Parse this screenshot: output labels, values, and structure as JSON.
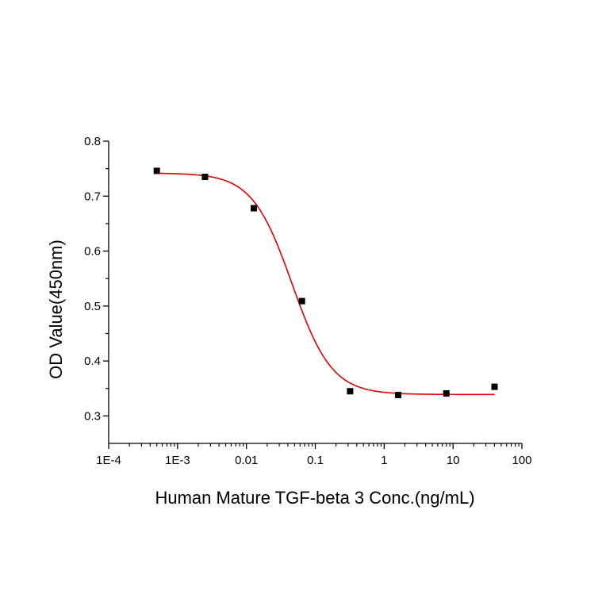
{
  "chart_data": {
    "type": "scatter",
    "title": "",
    "xlabel": "Human Mature TGF-beta 3 Conc.(ng/mL)",
    "ylabel": "OD Value(450nm)",
    "x_scale": "log",
    "xlim": [
      0.0001,
      100
    ],
    "ylim": [
      0.25,
      0.8
    ],
    "x_ticks": [
      {
        "value": 0.0001,
        "label": "1E-4"
      },
      {
        "value": 0.001,
        "label": "1E-3"
      },
      {
        "value": 0.01,
        "label": "0.01"
      },
      {
        "value": 0.1,
        "label": "0.1"
      },
      {
        "value": 1,
        "label": "1"
      },
      {
        "value": 10,
        "label": "10"
      },
      {
        "value": 100,
        "label": "100"
      }
    ],
    "y_ticks": [
      {
        "value": 0.3,
        "label": "0.3"
      },
      {
        "value": 0.4,
        "label": "0.4"
      },
      {
        "value": 0.5,
        "label": "0.5"
      },
      {
        "value": 0.6,
        "label": "0.6"
      },
      {
        "value": 0.7,
        "label": "0.7"
      },
      {
        "value": 0.8,
        "label": "0.8"
      }
    ],
    "grid": false,
    "points": [
      {
        "x": 0.0005,
        "y": 0.746
      },
      {
        "x": 0.0025,
        "y": 0.735
      },
      {
        "x": 0.0128,
        "y": 0.678
      },
      {
        "x": 0.064,
        "y": 0.509
      },
      {
        "x": 0.32,
        "y": 0.345
      },
      {
        "x": 1.6,
        "y": 0.338
      },
      {
        "x": 8,
        "y": 0.341
      },
      {
        "x": 40,
        "y": 0.353
      }
    ],
    "fit_curve": {
      "model": "4PL",
      "top": 0.742,
      "bottom": 0.339,
      "ec50": 0.046,
      "hill": 1.5,
      "x_range": [
        0.0005,
        40
      ]
    },
    "colors": {
      "points": "#000000",
      "fit_curve": "#e00000",
      "axes": "#000000"
    }
  }
}
